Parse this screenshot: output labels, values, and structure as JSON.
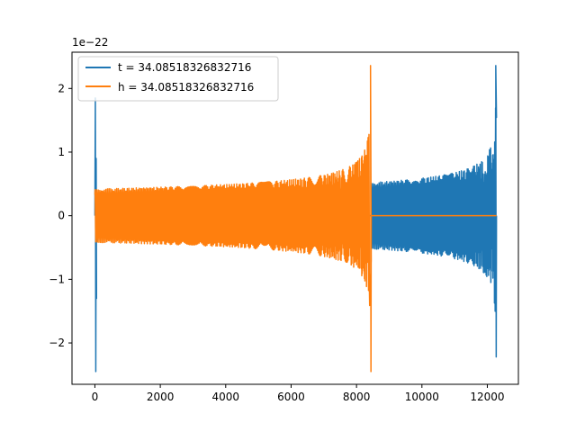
{
  "chart_data": {
    "type": "line",
    "title": "",
    "xlabel": "",
    "ylabel": "",
    "xlim": [
      -700,
      12950
    ],
    "ylim": [
      -2.65,
      2.57
    ],
    "y_scale_label": "1e−22",
    "x_ticks": [
      {
        "value": 0,
        "label": "0"
      },
      {
        "value": 2000,
        "label": "2000"
      },
      {
        "value": 4000,
        "label": "4000"
      },
      {
        "value": 6000,
        "label": "6000"
      },
      {
        "value": 8000,
        "label": "8000"
      },
      {
        "value": 10000,
        "label": "10000"
      },
      {
        "value": 12000,
        "label": "12000"
      }
    ],
    "y_ticks": [
      {
        "value": -2,
        "label": "−2"
      },
      {
        "value": -1,
        "label": "−1"
      },
      {
        "value": 0,
        "label": "0"
      },
      {
        "value": 1,
        "label": "1"
      },
      {
        "value": 2,
        "label": "2"
      }
    ],
    "grid": false,
    "legend_position": "upper-left",
    "series": [
      {
        "name": "t = 34.08518326832716",
        "color": "#1f77b4",
        "description": "spike near x=0, flat to ~8450, chirp oscillation from ~8450 to ~12280",
        "start_spike": {
          "x": [
            0,
            30
          ],
          "y_max": 1.85,
          "y_min": -2.45
        },
        "flat": {
          "x_start": 60,
          "x_end": 8450,
          "y": 0
        },
        "chirp": {
          "x_start": 8450,
          "x_end": 12280,
          "amp_start": 0.52,
          "amp_peak_high": 2.36,
          "amp_peak_low": -2.22
        }
      },
      {
        "name": "h = 34.08518326832716",
        "color": "#ff7f0e",
        "description": "chirp oscillation from ~0 to ~8450, then flat to ~12280",
        "chirp": {
          "x_start": 0,
          "x_end": 8450,
          "amp_start": 0.42,
          "amp_peak_high": 2.36,
          "amp_peak_low": -2.45
        },
        "flat": {
          "x_start": 8450,
          "x_end": 12280,
          "y": 0
        }
      }
    ]
  }
}
